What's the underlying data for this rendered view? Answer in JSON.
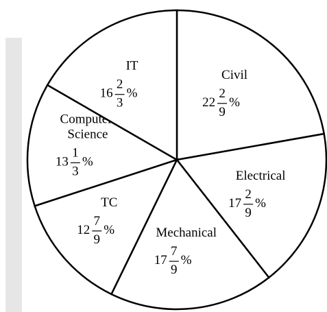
{
  "chart_data": {
    "type": "pie",
    "categories": [
      "Civil",
      "Electrical",
      "Mechanical",
      "TC",
      "Computer Science",
      "IT"
    ],
    "values": [
      22.22,
      17.22,
      17.78,
      12.78,
      13.33,
      16.67
    ],
    "value_labels": [
      "22 2/9%",
      "17 2/9%",
      "17 7/9%",
      "12 7/9%",
      "13 1/3%",
      "16 2/3%"
    ],
    "color": "#ffffff"
  }
}
